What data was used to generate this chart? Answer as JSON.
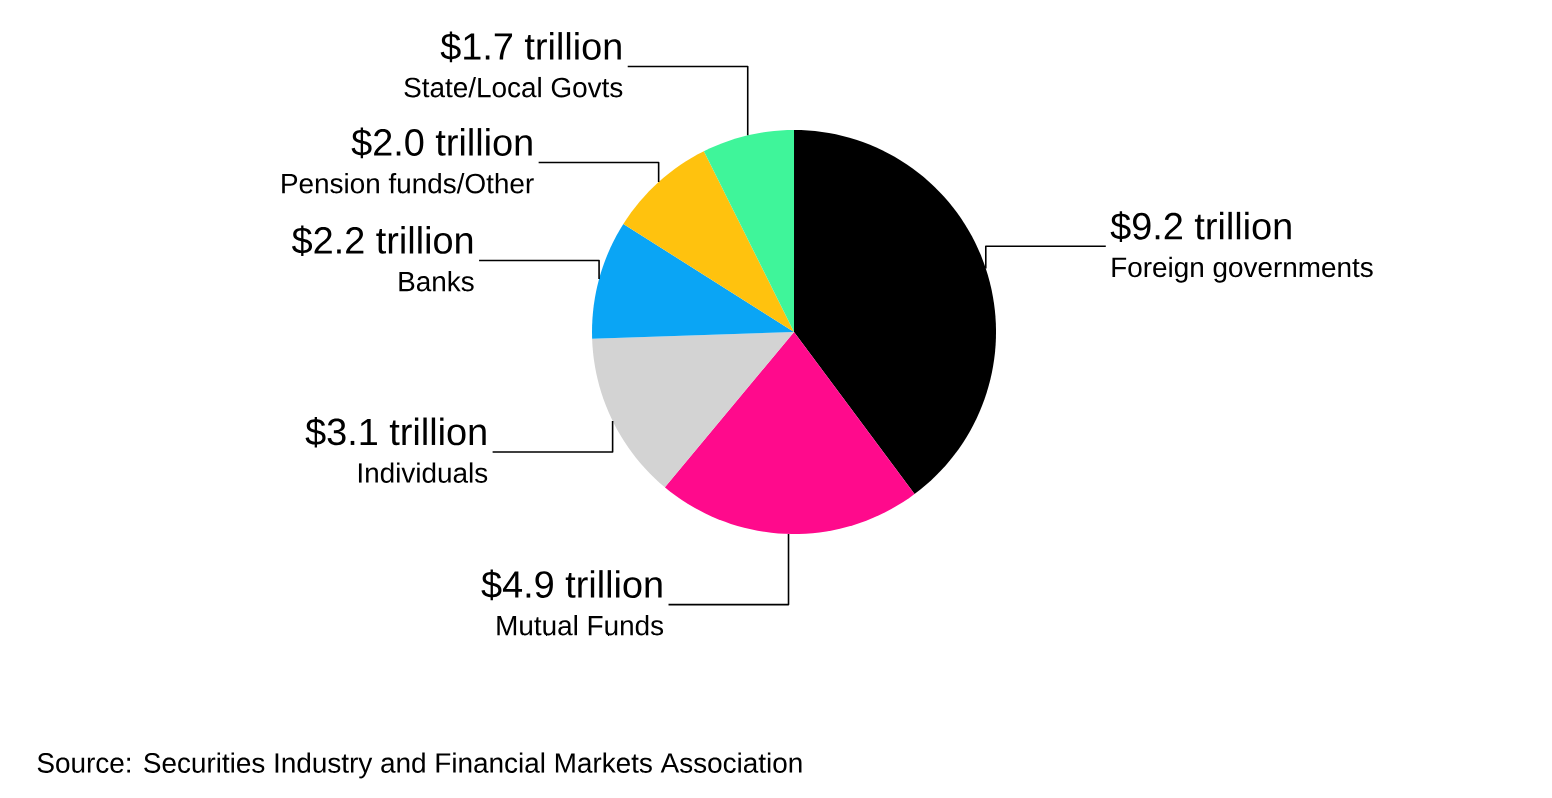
{
  "chart_data": {
    "type": "pie",
    "categories": [
      "Foreign governments",
      "Mutual Funds",
      "Individuals",
      "Banks",
      "Pension funds/Other",
      "State/Local Govts"
    ],
    "values": [
      9.2,
      4.9,
      3.1,
      2.2,
      2.0,
      1.7
    ],
    "value_labels": [
      "$9.2 trillion",
      "$4.9 trillion",
      "$3.1 trillion",
      "$2.2 trillion",
      "$2.0 trillion",
      "$1.7 trillion"
    ],
    "colors": [
      "#000000",
      "#ff0a8c",
      "#d3d3d3",
      "#0aa5f5",
      "#ffc20e",
      "#3ff59a"
    ],
    "annotations": [
      "Source: Securities Industry and Financial Markets Association"
    ]
  }
}
